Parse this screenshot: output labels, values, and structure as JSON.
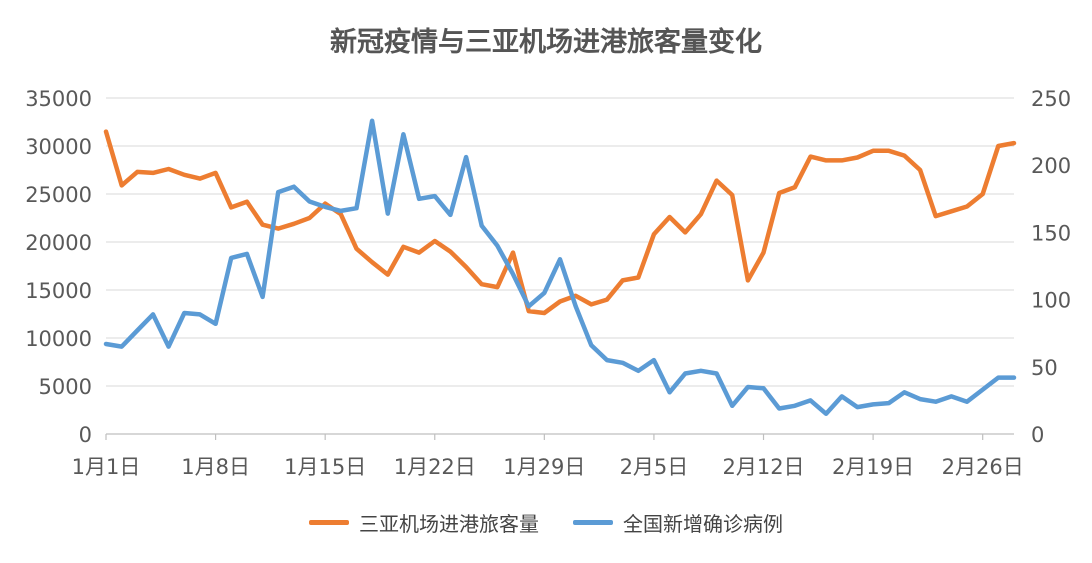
{
  "chart_data": {
    "type": "line",
    "title": "新冠疫情与三亚机场进港旅客量变化",
    "x": [
      "1月1日",
      "1月2日",
      "1月3日",
      "1月4日",
      "1月5日",
      "1月6日",
      "1月7日",
      "1月8日",
      "1月9日",
      "1月10日",
      "1月11日",
      "1月12日",
      "1月13日",
      "1月14日",
      "1月15日",
      "1月16日",
      "1月17日",
      "1月18日",
      "1月19日",
      "1月20日",
      "1月21日",
      "1月22日",
      "1月23日",
      "1月24日",
      "1月25日",
      "1月26日",
      "1月27日",
      "1月28日",
      "1月29日",
      "1月30日",
      "1月31日",
      "2月1日",
      "2月2日",
      "2月3日",
      "2月4日",
      "2月5日",
      "2月6日",
      "2月7日",
      "2月8日",
      "2月9日",
      "2月10日",
      "2月11日",
      "2月12日",
      "2月13日",
      "2月14日",
      "2月15日",
      "2月16日",
      "2月17日",
      "2月18日",
      "2月19日",
      "2月20日",
      "2月21日",
      "2月22日",
      "2月23日",
      "2月24日",
      "2月25日",
      "2月26日",
      "2月27日",
      "2月28日"
    ],
    "x_tick_labels": [
      "1月1日",
      "1月8日",
      "1月15日",
      "1月22日",
      "1月29日",
      "2月5日",
      "2月12日",
      "2月19日",
      "2月26日"
    ],
    "y_left_ticks": [
      "0",
      "5000",
      "10000",
      "15000",
      "20000",
      "25000",
      "30000",
      "35000"
    ],
    "y_right_ticks": [
      "0",
      "50",
      "100",
      "150",
      "200",
      "250"
    ],
    "y_left_lim": [
      0,
      35000
    ],
    "y_right_lim": [
      0,
      250
    ],
    "grid": true,
    "legend_position": "bottom",
    "series": [
      {
        "name": "三亚机场进港旅客量",
        "axis": "left",
        "color": "#ED7D31",
        "values": [
          31500,
          25900,
          27300,
          27200,
          27600,
          27000,
          26600,
          27200,
          23600,
          24200,
          21800,
          21400,
          21900,
          22500,
          24000,
          22900,
          19300,
          17900,
          16600,
          19500,
          18900,
          20100,
          19000,
          17400,
          15600,
          15300,
          18900,
          12800,
          12600,
          13800,
          14400,
          13500,
          14000,
          16000,
          16300,
          20800,
          22600,
          21000,
          22900,
          26400,
          24900,
          16000,
          18900,
          25100,
          25700,
          28900,
          28500,
          28500,
          28800,
          29500,
          29500,
          29000,
          27500,
          22700,
          23200,
          23700,
          25000,
          30000,
          30300
        ]
      },
      {
        "name": "全国新增确诊病例",
        "axis": "right",
        "color": "#5B9BD5",
        "values": [
          67,
          65,
          77,
          89,
          65,
          90,
          89,
          82,
          131,
          134,
          102,
          180,
          184,
          173,
          169,
          166,
          168,
          233,
          164,
          223,
          175,
          177,
          163,
          206,
          155,
          140,
          119,
          95,
          105,
          130,
          95,
          66,
          55,
          53,
          47,
          55,
          31,
          45,
          47,
          45,
          21,
          35,
          34,
          19,
          21,
          25,
          15,
          28,
          20,
          22,
          23,
          31,
          26,
          24,
          28,
          24,
          33,
          42,
          42
        ]
      }
    ]
  },
  "legend": {
    "item1_label": "三亚机场进港旅客量",
    "item2_label": "全国新增确诊病例"
  }
}
